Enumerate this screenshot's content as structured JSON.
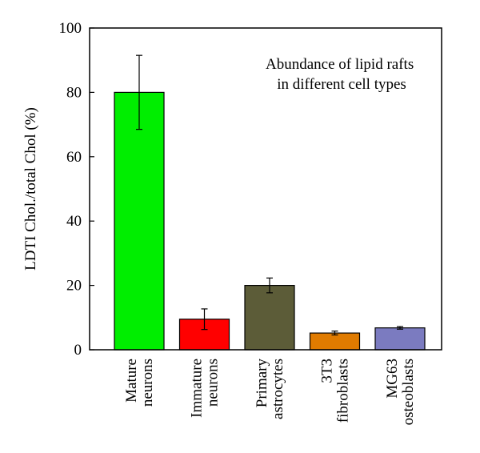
{
  "chart_data": {
    "type": "bar",
    "title": "",
    "xlabel": "",
    "ylabel": "LDTI Chol./total Chol (%)",
    "ylim": [
      0,
      100
    ],
    "yticks": [
      0,
      20,
      40,
      60,
      80,
      100
    ],
    "grid": false,
    "annotation": [
      "Abundance of lipid rafts",
      "in different cell types"
    ],
    "categories": [
      [
        "Mature",
        "neurons"
      ],
      [
        "Immature",
        "neurons"
      ],
      [
        "Primary",
        "astrocytes"
      ],
      [
        "3T3",
        "fibroblasts"
      ],
      [
        "MG63",
        "osteoblasts"
      ]
    ],
    "values": [
      80,
      9.5,
      20,
      5.2,
      6.8
    ],
    "errors": [
      11.5,
      3.2,
      2.3,
      0.6,
      0.4
    ],
    "colors": [
      "#00ee00",
      "#ff0000",
      "#5c5c38",
      "#e07b00",
      "#7b7bc0"
    ]
  }
}
